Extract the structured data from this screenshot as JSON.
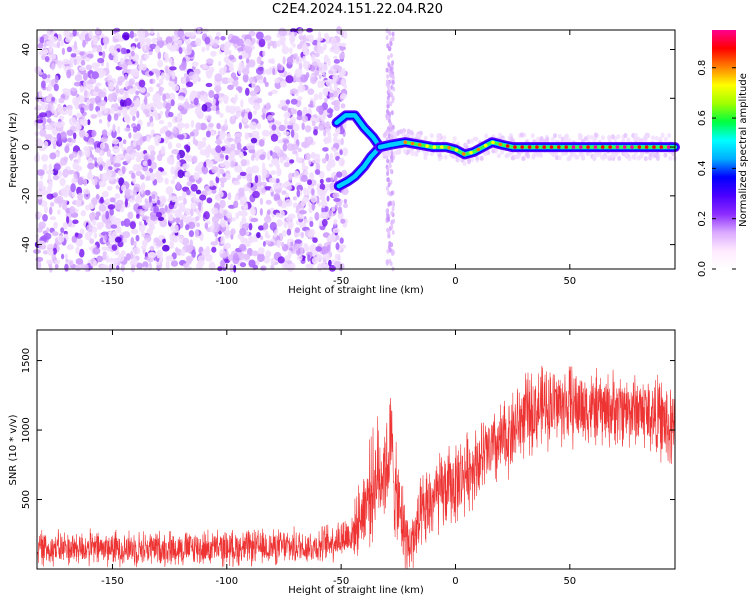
{
  "title": "C2E4.2024.151.22.04.R20",
  "chart_data": [
    {
      "type": "heatmap",
      "xlabel": "Height of straight line (km)",
      "ylabel": "Frequency (Hz)",
      "xlim": [
        -183,
        96
      ],
      "ylim": [
        -50,
        48
      ],
      "x_ticks": [
        -150,
        -100,
        -50,
        0,
        50
      ],
      "y_ticks": [
        -40,
        -20,
        0,
        20,
        40
      ],
      "noise_region_x": [
        -183,
        -48
      ],
      "noise_streak_x": [
        -30,
        -27
      ],
      "branch_upper": [
        [
          -52,
          10
        ],
        [
          -48,
          13
        ],
        [
          -44,
          13
        ],
        [
          -40,
          8
        ],
        [
          -36,
          4
        ],
        [
          -33,
          0
        ]
      ],
      "branch_lower": [
        [
          -51,
          -16
        ],
        [
          -47,
          -14
        ],
        [
          -44,
          -12
        ],
        [
          -40,
          -8
        ],
        [
          -37,
          -4
        ],
        [
          -34,
          -1
        ]
      ],
      "ridge": [
        [
          -33,
          0
        ],
        [
          -28,
          1
        ],
        [
          -22,
          2
        ],
        [
          -16,
          1
        ],
        [
          -10,
          0
        ],
        [
          -4,
          0
        ],
        [
          0,
          -1
        ],
        [
          4,
          -3
        ],
        [
          8,
          -2
        ],
        [
          12,
          0
        ],
        [
          16,
          2
        ],
        [
          20,
          1
        ],
        [
          25,
          0
        ],
        [
          35,
          0
        ],
        [
          45,
          0
        ],
        [
          55,
          0
        ],
        [
          65,
          0
        ],
        [
          75,
          0
        ],
        [
          85,
          0
        ],
        [
          96,
          0
        ]
      ],
      "colorbar": {
        "label": "Normalized spectral amplitude",
        "ticks": [
          "0.0",
          "0.2",
          "0.4",
          "0.6",
          "0.8"
        ],
        "range": [
          0,
          0.95
        ],
        "colormap": [
          "#ffffff",
          "#ffeaff",
          "#d9a8ff",
          "#8b2bff",
          "#4a00ff",
          "#0000ff",
          "#00b0ff",
          "#00ffff",
          "#00ff40",
          "#a0ff00",
          "#ffff00",
          "#ff8000",
          "#ff0000",
          "#ff0090"
        ]
      }
    },
    {
      "type": "line",
      "xlabel": "Height of straight line (km)",
      "ylabel": "SNR (10 * v/v)",
      "xlim": [
        -183,
        96
      ],
      "ylim": [
        0,
        1720
      ],
      "x_ticks": [
        -150,
        -100,
        -50,
        0,
        50
      ],
      "y_ticks": [
        500,
        1000,
        1500
      ],
      "color": "#ee3333",
      "envelope": [
        {
          "x": -183,
          "mean": 150,
          "spread": 150
        },
        {
          "x": -150,
          "mean": 150,
          "spread": 150
        },
        {
          "x": -100,
          "mean": 150,
          "spread": 150
        },
        {
          "x": -60,
          "mean": 165,
          "spread": 150
        },
        {
          "x": -45,
          "mean": 250,
          "spread": 200
        },
        {
          "x": -35,
          "mean": 650,
          "spread": 500
        },
        {
          "x": -30,
          "mean": 750,
          "spread": 450
        },
        {
          "x": -28,
          "mean": 900,
          "spread": 500
        },
        {
          "x": -26,
          "mean": 500,
          "spread": 450
        },
        {
          "x": -20,
          "mean": 150,
          "spread": 250
        },
        {
          "x": -15,
          "mean": 350,
          "spread": 350
        },
        {
          "x": -10,
          "mean": 500,
          "spread": 350
        },
        {
          "x": 0,
          "mean": 620,
          "spread": 350
        },
        {
          "x": 10,
          "mean": 780,
          "spread": 320
        },
        {
          "x": 20,
          "mean": 900,
          "spread": 350
        },
        {
          "x": 30,
          "mean": 1100,
          "spread": 350
        },
        {
          "x": 40,
          "mean": 1180,
          "spread": 350
        },
        {
          "x": 50,
          "mean": 1180,
          "spread": 350
        },
        {
          "x": 60,
          "mean": 1150,
          "spread": 320
        },
        {
          "x": 70,
          "mean": 1150,
          "spread": 320
        },
        {
          "x": 80,
          "mean": 1150,
          "spread": 320
        },
        {
          "x": 90,
          "mean": 1080,
          "spread": 350
        },
        {
          "x": 96,
          "mean": 950,
          "spread": 400
        }
      ]
    }
  ]
}
